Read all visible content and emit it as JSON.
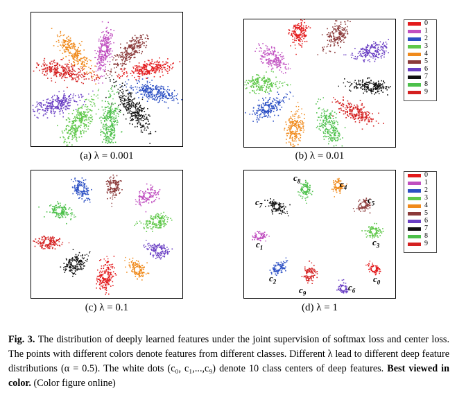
{
  "colors": {
    "0": "#e31a1c",
    "1": "#c04fc0",
    "2": "#2b4fc4",
    "3": "#5fc84a",
    "4": "#f08a1c",
    "5": "#8b3a3a",
    "6": "#6a3fc4",
    "7": "#111111",
    "8": "#4cc04a",
    "9": "#d42020"
  },
  "legend": [
    "0",
    "1",
    "2",
    "3",
    "4",
    "5",
    "6",
    "7",
    "8",
    "9"
  ],
  "panels": {
    "a": {
      "caption_prefix": "(a)",
      "caption_lambda": "λ = 0.001"
    },
    "b": {
      "caption_prefix": "(b)",
      "caption_lambda": "λ = 0.01"
    },
    "c": {
      "caption_prefix": "(c)",
      "caption_lambda": "λ = 0.1"
    },
    "d": {
      "caption_prefix": "(d)",
      "caption_lambda": "λ = 1"
    }
  },
  "center_labels": [
    {
      "id": "c8",
      "letter": "c",
      "sub": "8"
    },
    {
      "id": "c4",
      "letter": "c",
      "sub": "4"
    },
    {
      "id": "c7",
      "letter": "c",
      "sub": "7"
    },
    {
      "id": "c5",
      "letter": "c",
      "sub": "5"
    },
    {
      "id": "c1",
      "letter": "c",
      "sub": "1"
    },
    {
      "id": "c3",
      "letter": "c",
      "sub": "3"
    },
    {
      "id": "c2",
      "letter": "c",
      "sub": "2"
    },
    {
      "id": "c9",
      "letter": "c",
      "sub": "9"
    },
    {
      "id": "c6",
      "letter": "c",
      "sub": "6"
    },
    {
      "id": "c0",
      "letter": "c",
      "sub": "0"
    }
  ],
  "caption": {
    "fig_label": "Fig. 3.",
    "text1": " The distribution of deeply learned features under the joint supervision of softmax loss and center loss. The points with different colors denote features from different classes. Different λ lead to different deep feature distributions (α = 0.5). The white dots (c₀, c₁,...,c₉) denote 10 class centers of deep features. ",
    "bold": "Best viewed in color.",
    "text2": " (Color figure online)"
  },
  "chart_data": [
    {
      "type": "scatter",
      "title": "(a) λ = 0.001",
      "classes": [
        "0",
        "1",
        "2",
        "3",
        "4",
        "5",
        "6",
        "7",
        "8",
        "9"
      ],
      "centers_deg": {
        "0": 15,
        "1": 50,
        "2": 105,
        "3": 90,
        "4": 140,
        "5": 20,
        "6": 160,
        "7": 60,
        "8": 120,
        "9": 175
      },
      "clusters": "elongated radial petals"
    },
    {
      "type": "scatter",
      "title": "(b) λ = 0.01",
      "classes": [
        "0",
        "1",
        "2",
        "3",
        "4",
        "5",
        "6",
        "7",
        "8",
        "9"
      ],
      "clusters": "separated elongated clusters on a ring"
    },
    {
      "type": "scatter",
      "title": "(c) λ = 0.1",
      "classes": [
        "0",
        "1",
        "2",
        "3",
        "4",
        "5",
        "6",
        "7",
        "8",
        "9"
      ],
      "clusters": "compact clusters on a ring"
    },
    {
      "type": "scatter",
      "title": "(d) λ = 1",
      "classes": [
        "0",
        "1",
        "2",
        "3",
        "4",
        "5",
        "6",
        "7",
        "8",
        "9"
      ],
      "clusters": "very compact clusters with labeled centers"
    }
  ]
}
